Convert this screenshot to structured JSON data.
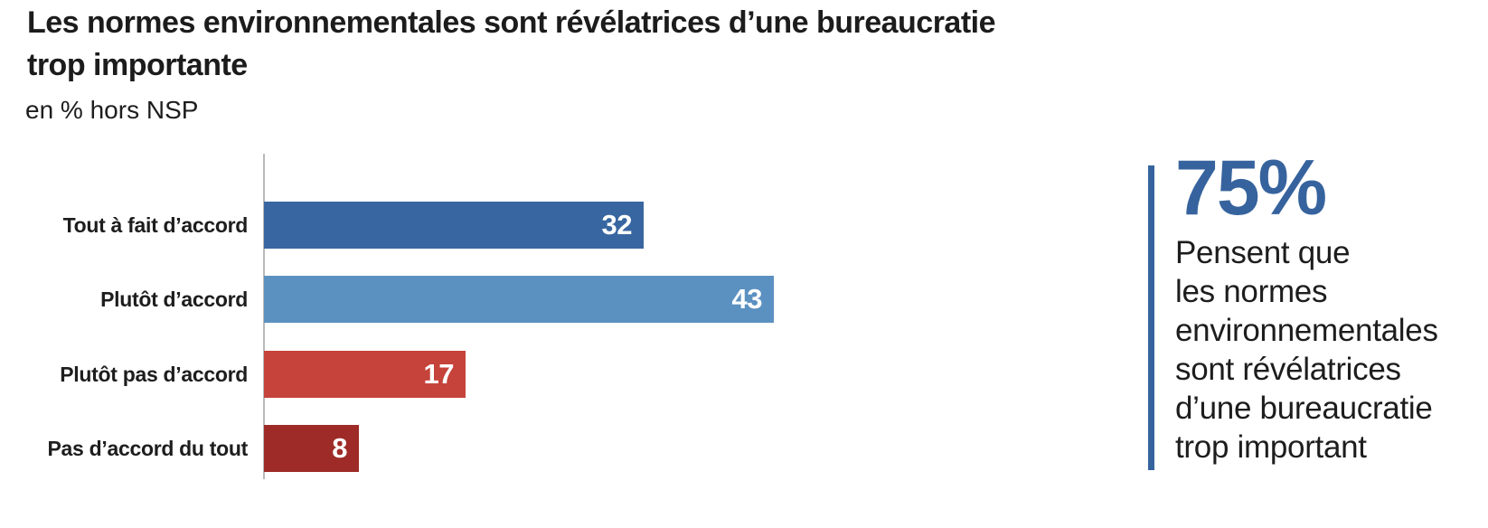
{
  "title": {
    "lines": [
      "Les normes environnementales sont révélatrices d’une bureaucratie",
      "trop importante"
    ]
  },
  "subtitle": "en % hors NSP",
  "chart_data": {
    "type": "bar",
    "orientation": "horizontal",
    "title": "Les normes environnementales sont révélatrices d’une bureaucratie trop importante",
    "unit_label": "en % hors NSP",
    "categories": [
      "Tout à fait d’accord",
      "Plutôt d’accord",
      "Plutôt pas d’accord",
      "Pas d’accord du tout"
    ],
    "values": [
      32,
      43,
      17,
      8
    ],
    "bar_colors": [
      "#3866A0",
      "#5B91C1",
      "#C5433A",
      "#9E2B27"
    ],
    "value_labels": [
      "32",
      "43",
      "17",
      "8"
    ],
    "value_label_position": "inside-end",
    "xlim": [
      0,
      45
    ],
    "grid": false,
    "legend": false,
    "axis_line_color": "#B9B9B9",
    "text_color": "#1D1D1D"
  },
  "callout": {
    "value": "75%",
    "lines": [
      "Pensent que",
      "les normes",
      "environnementales",
      "sont révélatrices",
      "d’une bureaucratie",
      "trop important"
    ],
    "text": "75% Pensent que les normes environnementales sont révélatrices d’une bureaucratie trop important",
    "accent_color": "#36639D"
  }
}
